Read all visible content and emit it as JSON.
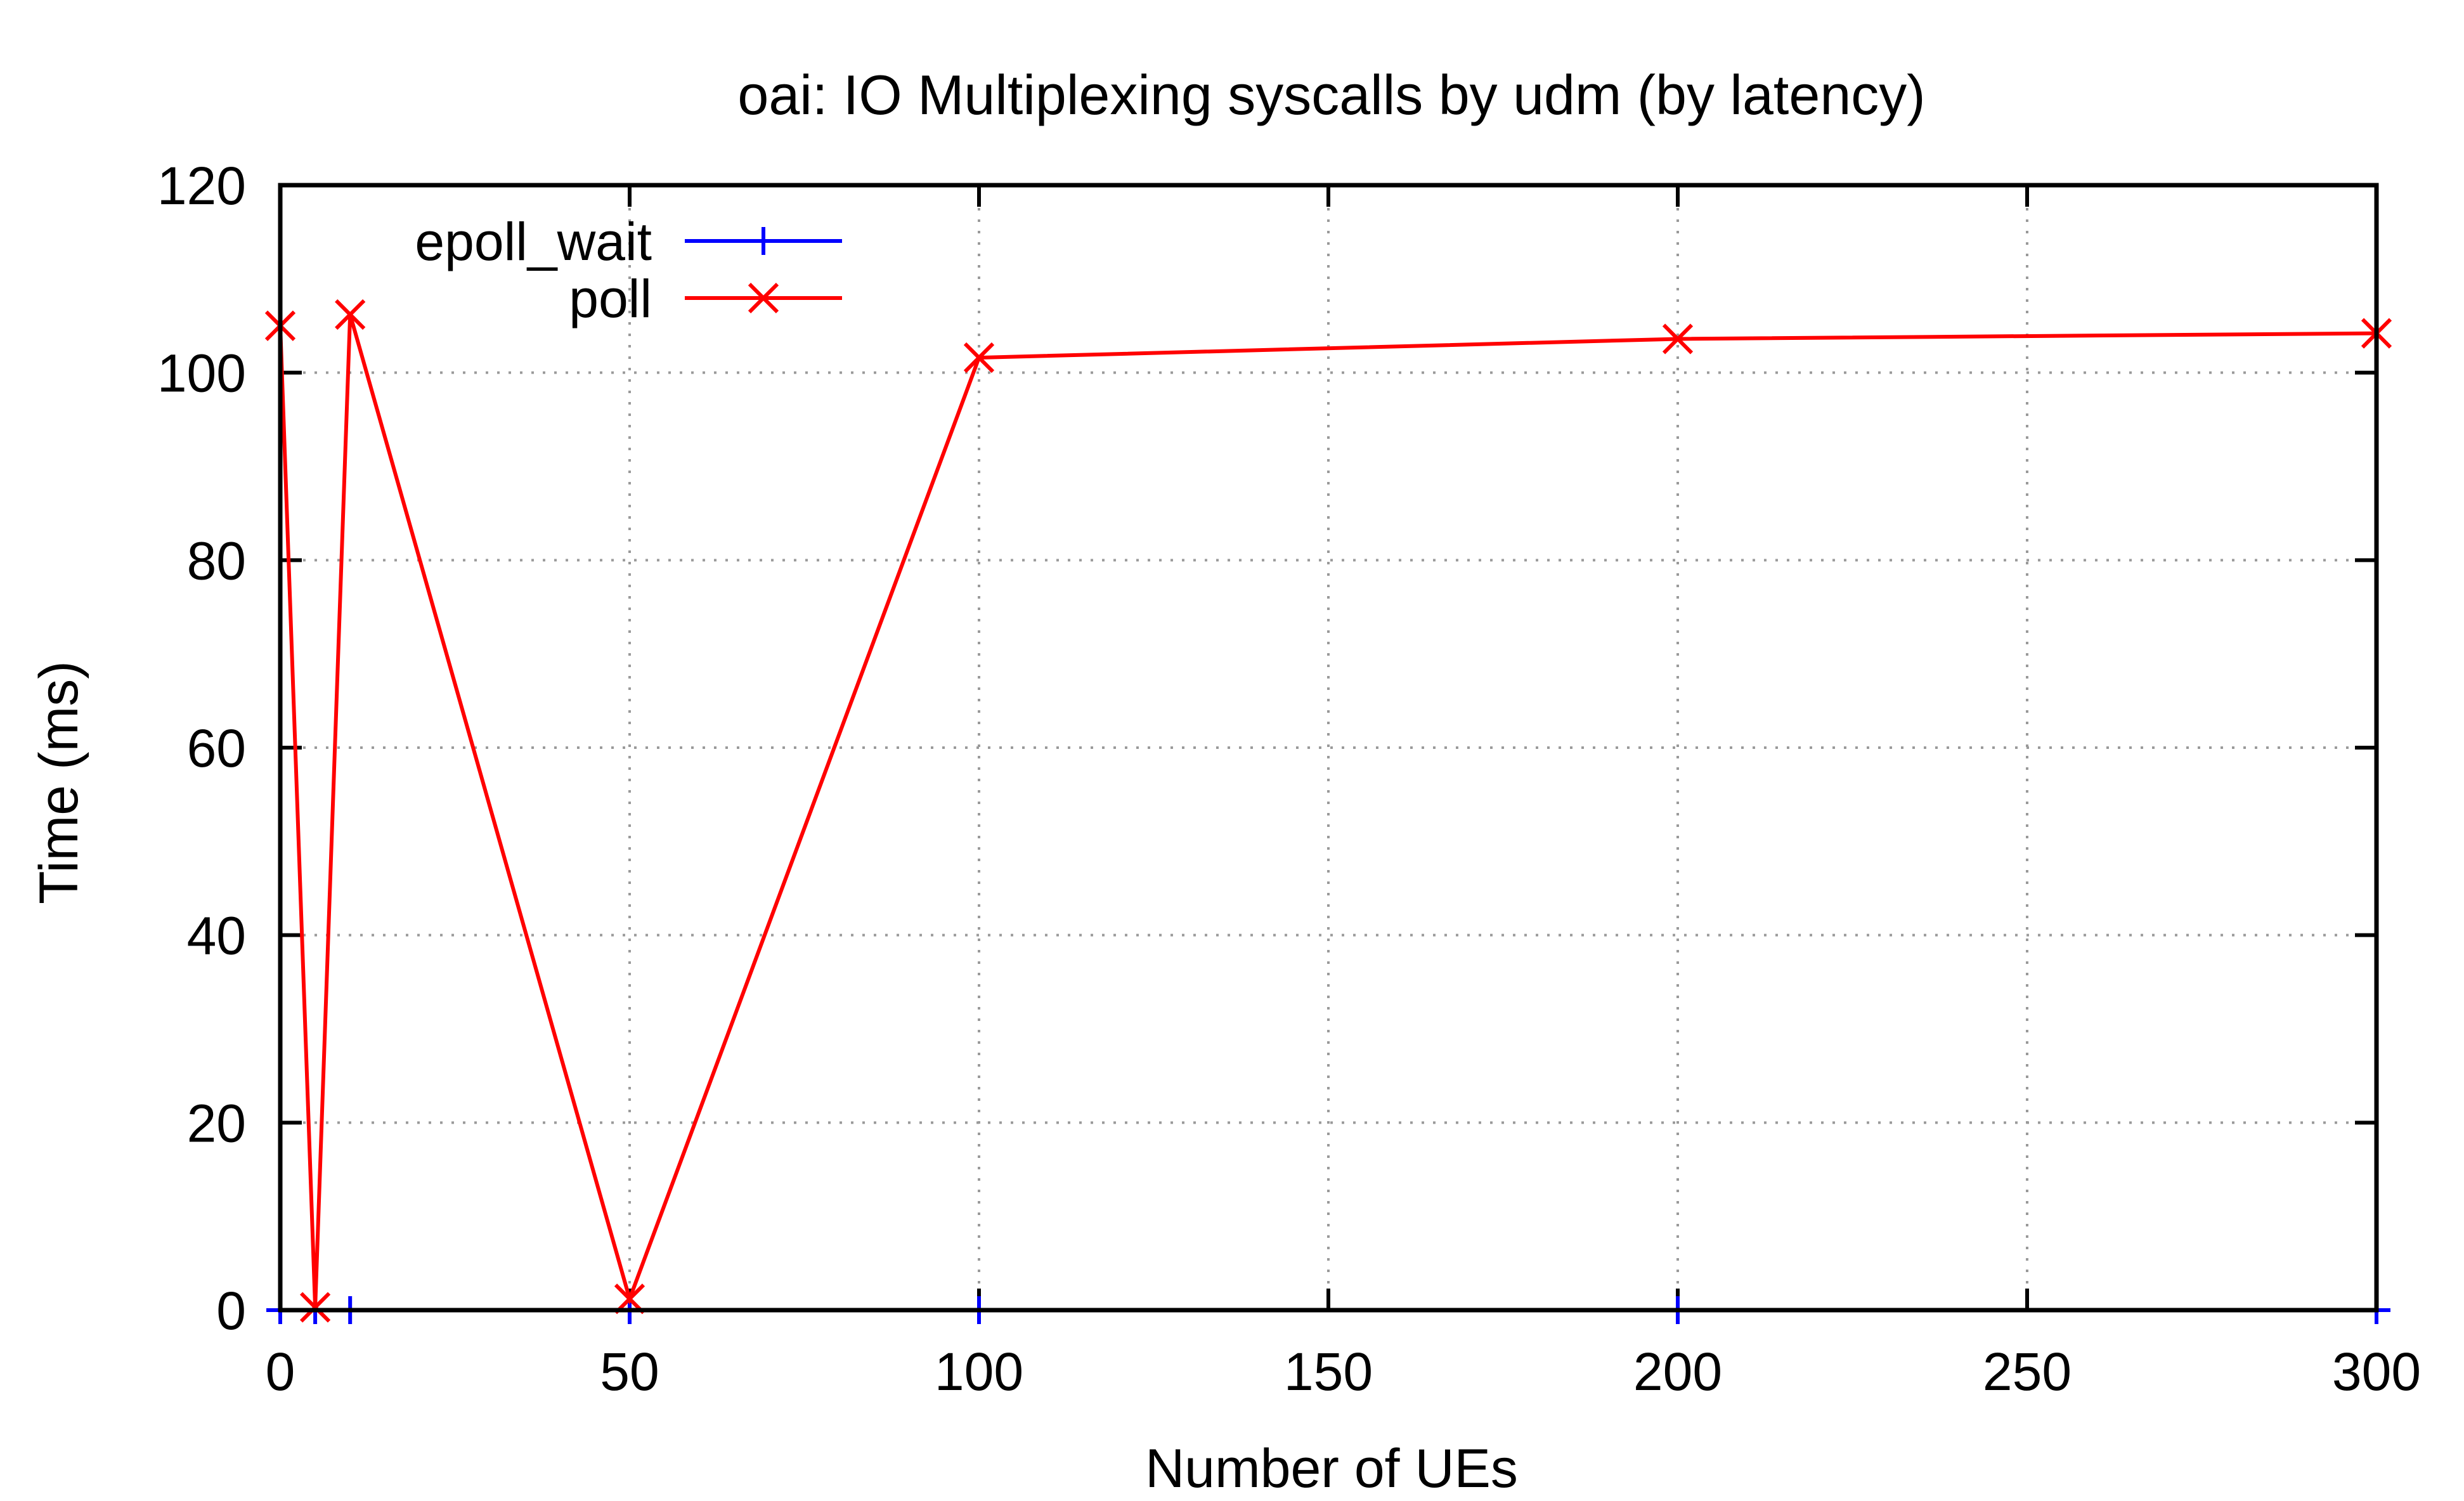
{
  "chart_data": {
    "type": "line",
    "title": "oai: IO Multiplexing syscalls by udm (by latency)",
    "xlabel": "Number of UEs",
    "ylabel": "Time (ms)",
    "xlim": [
      0,
      300
    ],
    "ylim": [
      0,
      120
    ],
    "x_ticks": [
      0,
      50,
      100,
      150,
      200,
      250,
      300
    ],
    "y_ticks": [
      0,
      20,
      40,
      60,
      80,
      100,
      120
    ],
    "grid": true,
    "legend_position": "top-left",
    "series": [
      {
        "name": "epoll_wait",
        "color": "#0000ff",
        "marker": "plus",
        "x": [
          0,
          5,
          10,
          50,
          100,
          200,
          300
        ],
        "y": [
          0,
          0,
          0,
          0,
          0,
          0,
          0
        ]
      },
      {
        "name": "poll",
        "color": "#ff0000",
        "marker": "cross",
        "x": [
          0,
          5,
          10,
          50,
          100,
          200,
          300
        ],
        "y": [
          105,
          0.3,
          106.2,
          1.2,
          101.6,
          103.6,
          104.2
        ]
      }
    ]
  }
}
